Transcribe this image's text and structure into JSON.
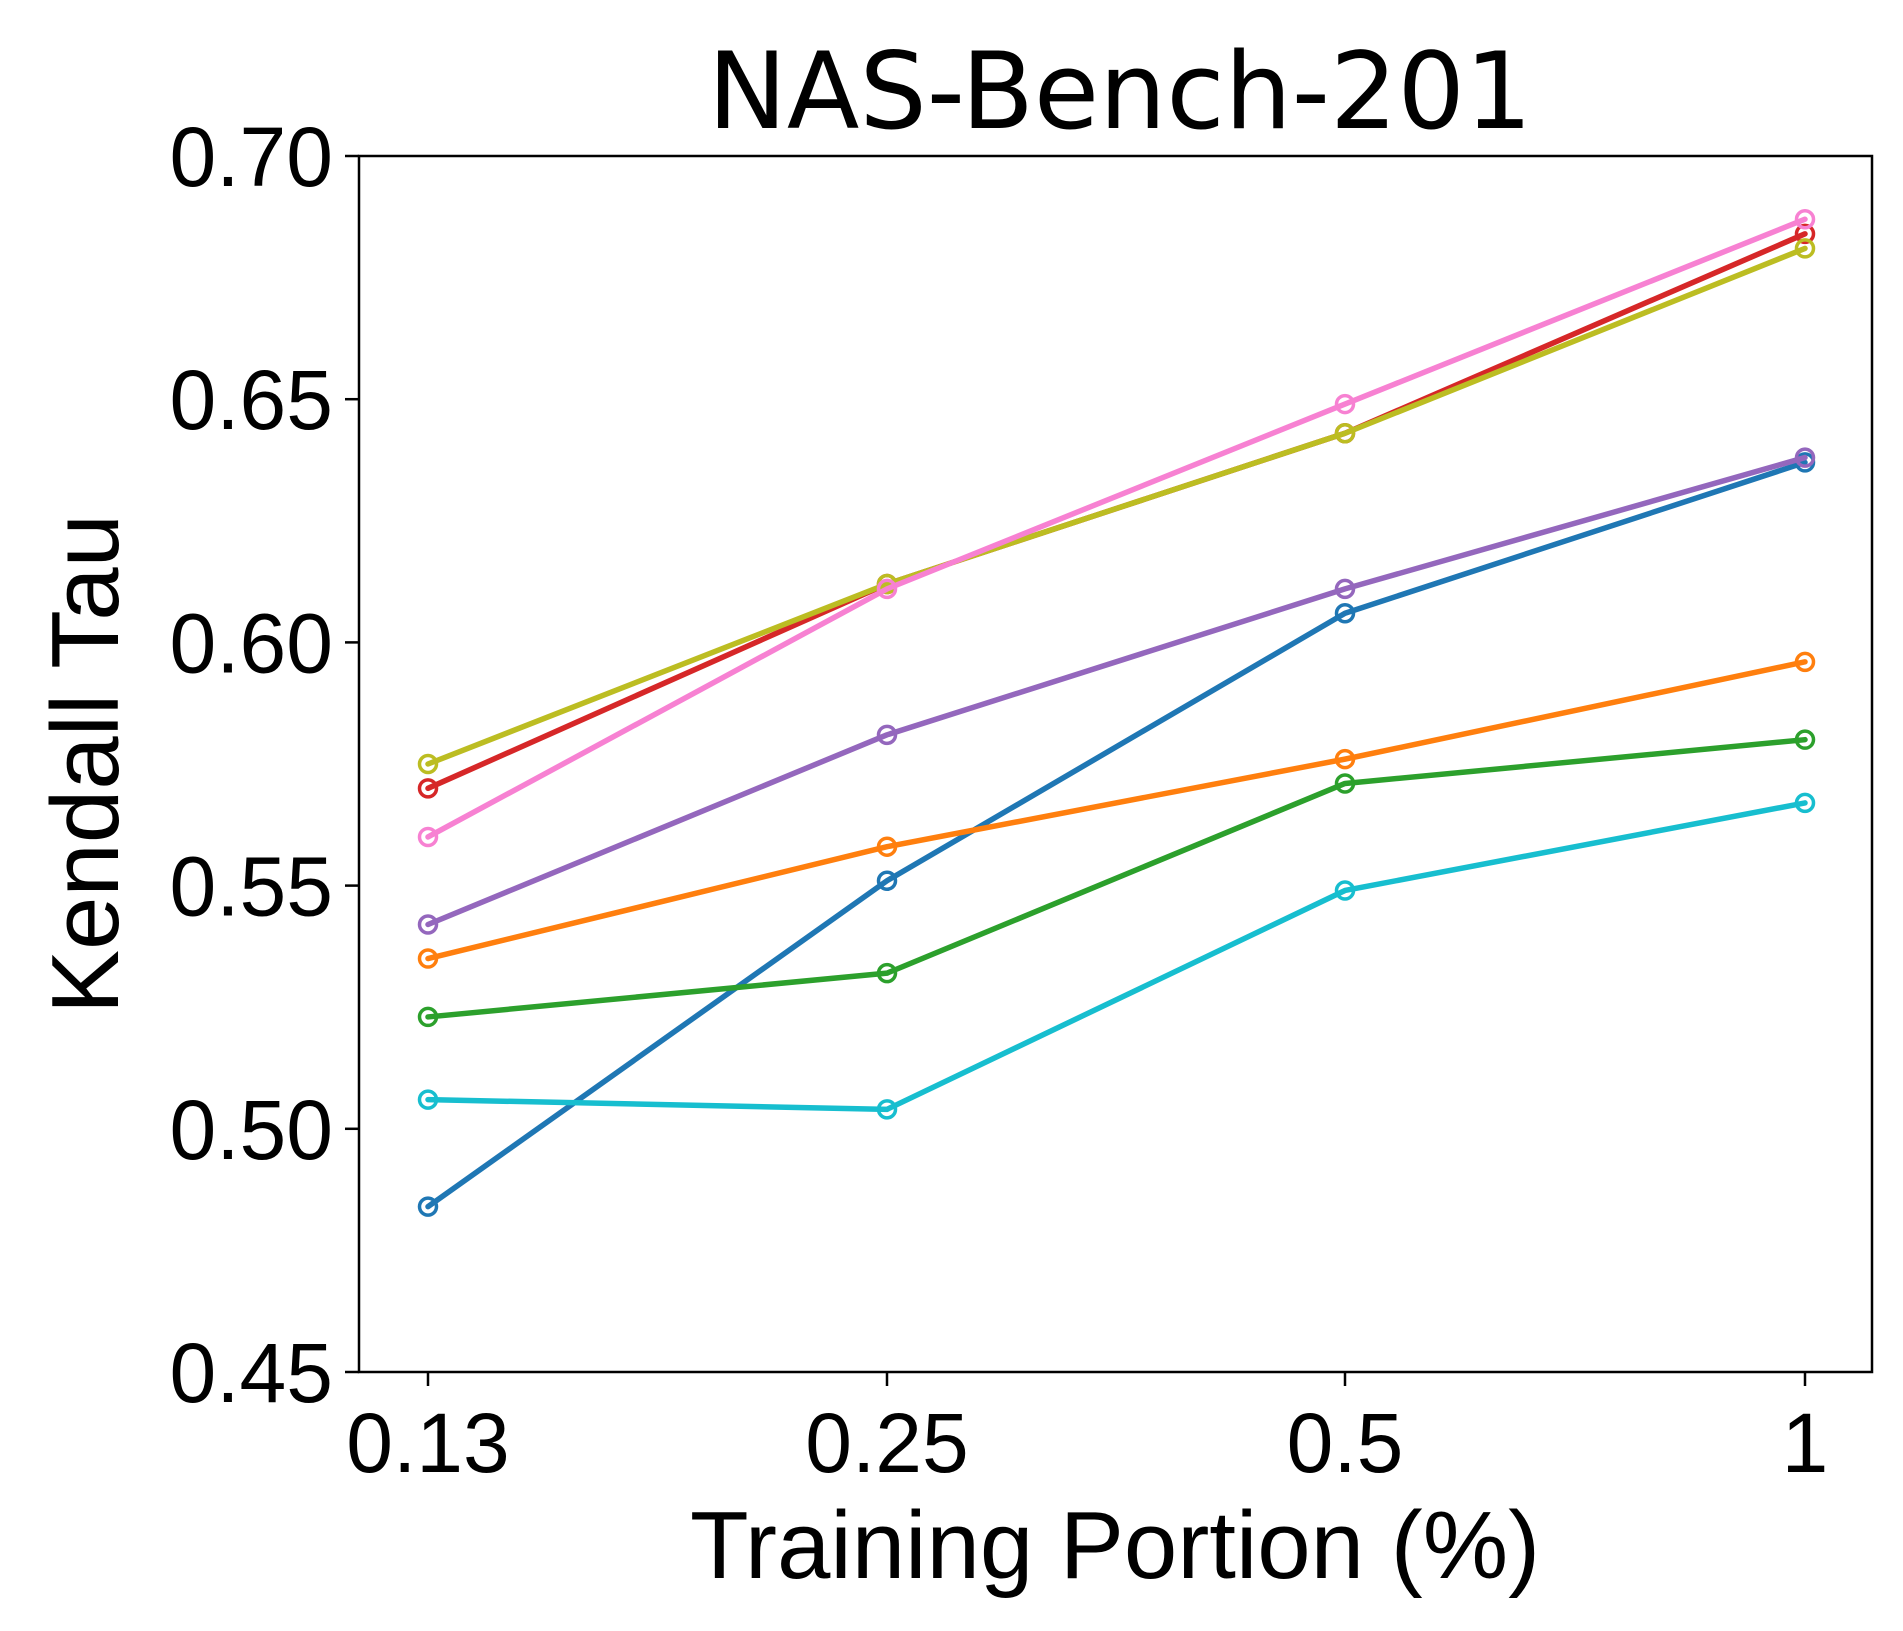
{
  "chart_data": {
    "type": "line",
    "title": "NAS-Bench-201",
    "xlabel": "Training Portion (%)",
    "ylabel": "Kendall Tau",
    "x": [
      "0.13",
      "0.25",
      "0.5",
      "1"
    ],
    "ylim": [
      0.45,
      0.7
    ],
    "yticks": [
      "0.45",
      "0.50",
      "0.55",
      "0.60",
      "0.65",
      "0.70"
    ],
    "grid": false,
    "series": [
      {
        "name": "series-blue",
        "color": "#1f77b4",
        "values": [
          0.484,
          0.551,
          0.606,
          0.637
        ]
      },
      {
        "name": "series-orange",
        "color": "#ff7f0e",
        "values": [
          0.535,
          0.558,
          0.576,
          0.596
        ]
      },
      {
        "name": "series-green",
        "color": "#2ca02c",
        "values": [
          0.523,
          0.532,
          0.571,
          0.58
        ]
      },
      {
        "name": "series-red",
        "color": "#d62728",
        "values": [
          0.57,
          0.612,
          0.643,
          0.684
        ]
      },
      {
        "name": "series-purple",
        "color": "#9467bd",
        "values": [
          0.542,
          0.581,
          0.611,
          0.638
        ]
      },
      {
        "name": "series-olive",
        "color": "#bcbd22",
        "values": [
          0.575,
          0.612,
          0.643,
          0.681
        ]
      },
      {
        "name": "series-pink",
        "color": "#f781d2",
        "values": [
          0.56,
          0.611,
          0.649,
          0.687
        ]
      },
      {
        "name": "series-cyan",
        "color": "#17becf",
        "values": [
          0.506,
          0.504,
          0.549,
          0.567
        ]
      }
    ]
  }
}
